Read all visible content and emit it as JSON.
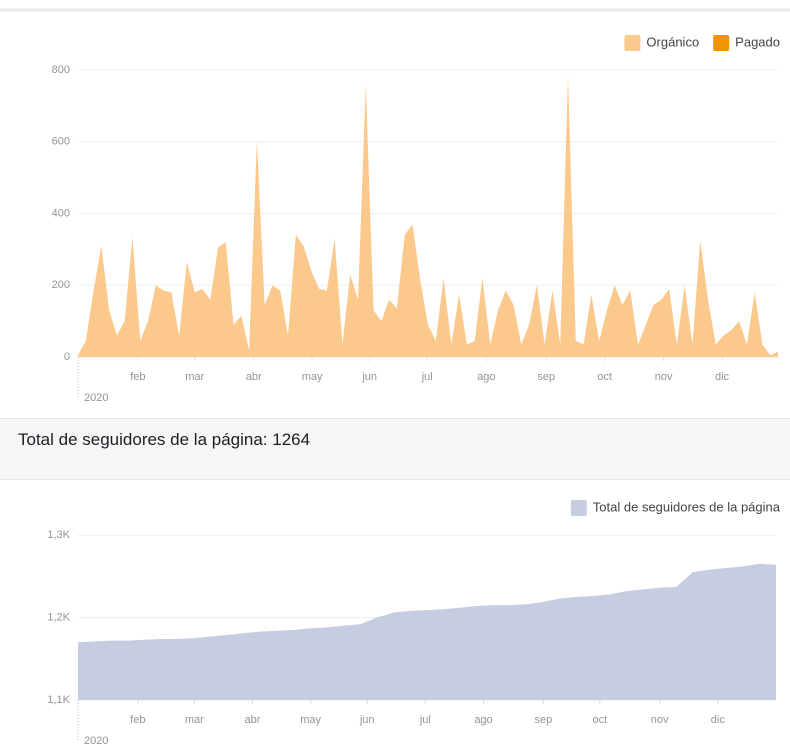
{
  "chart_data": [
    {
      "type": "area",
      "year_label": "2020",
      "series": [
        {
          "name": "Orgánico",
          "color": "#fcc98c",
          "values": [
            5,
            45,
            185,
            310,
            130,
            60,
            100,
            335,
            45,
            100,
            200,
            185,
            180,
            60,
            265,
            180,
            190,
            160,
            305,
            320,
            90,
            115,
            20,
            605,
            145,
            200,
            185,
            60,
            340,
            310,
            240,
            190,
            185,
            330,
            35,
            230,
            160,
            760,
            130,
            100,
            160,
            135,
            340,
            370,
            215,
            90,
            45,
            220,
            35,
            175,
            35,
            45,
            220,
            35,
            130,
            185,
            145,
            35,
            90,
            200,
            35,
            185,
            35,
            785,
            45,
            35,
            175,
            45,
            130,
            200,
            145,
            185,
            35,
            90,
            145,
            160,
            190,
            35,
            200,
            35,
            325,
            160,
            35,
            60,
            75,
            100,
            35,
            180,
            35,
            5,
            15
          ]
        },
        {
          "name": "Pagado",
          "color": "#f29400",
          "values": [
            0,
            0,
            0,
            0,
            0,
            0,
            0,
            0,
            0,
            0,
            0,
            0,
            0,
            0,
            0,
            0,
            0,
            0,
            0,
            0,
            0,
            0,
            0,
            0,
            0,
            0,
            0,
            0,
            0,
            0,
            0,
            0,
            0,
            0,
            0,
            0,
            0,
            0,
            0,
            0,
            0,
            0,
            0,
            0,
            0,
            0,
            0,
            0,
            0,
            0,
            0,
            0,
            0,
            0,
            0,
            0,
            0,
            0,
            0,
            0,
            0,
            0,
            0,
            0,
            0,
            0,
            0,
            0,
            0,
            0,
            0,
            0,
            0,
            0,
            0,
            0,
            0,
            0,
            0,
            0,
            0,
            0,
            0,
            0,
            0,
            0,
            0,
            0,
            0,
            0,
            0
          ]
        }
      ],
      "xlim": [
        0,
        90
      ],
      "xticks": [
        {
          "value": 7.7,
          "label": "feb"
        },
        {
          "value": 15.0,
          "label": "mar"
        },
        {
          "value": 22.6,
          "label": "abr"
        },
        {
          "value": 30.1,
          "label": "may"
        },
        {
          "value": 37.5,
          "label": "jun"
        },
        {
          "value": 44.9,
          "label": "jul"
        },
        {
          "value": 52.5,
          "label": "ago"
        },
        {
          "value": 60.2,
          "label": "sep"
        },
        {
          "value": 67.7,
          "label": "oct"
        },
        {
          "value": 75.3,
          "label": "nov"
        },
        {
          "value": 82.8,
          "label": "dic"
        }
      ],
      "ylim": [
        0,
        800
      ],
      "yticks": [
        0,
        200,
        400,
        600,
        800
      ],
      "grid": true
    },
    {
      "type": "area",
      "year_label": "2020",
      "series": [
        {
          "name": "Total de seguidores de la página",
          "color": "#c6cde0",
          "values": [
            1170,
            1171,
            1172,
            1172,
            1173,
            1174,
            1174,
            1175,
            1177,
            1179,
            1181,
            1183,
            1184,
            1185,
            1187,
            1188,
            1190,
            1192,
            1200,
            1206,
            1208,
            1209,
            1210,
            1212,
            1214,
            1215,
            1215,
            1216,
            1219,
            1223,
            1225,
            1226,
            1228,
            1232,
            1234,
            1236,
            1237,
            1255,
            1258,
            1260,
            1262,
            1265,
            1264
          ]
        }
      ],
      "xlim": [
        0,
        42
      ],
      "xticks": [
        {
          "value": 3.6,
          "label": "feb"
        },
        {
          "value": 7.0,
          "label": "mar"
        },
        {
          "value": 10.5,
          "label": "abr"
        },
        {
          "value": 14.0,
          "label": "may"
        },
        {
          "value": 17.4,
          "label": "jun"
        },
        {
          "value": 20.9,
          "label": "jul"
        },
        {
          "value": 24.4,
          "label": "ago"
        },
        {
          "value": 28.0,
          "label": "sep"
        },
        {
          "value": 31.4,
          "label": "oct"
        },
        {
          "value": 35.0,
          "label": "nov"
        },
        {
          "value": 38.5,
          "label": "dic"
        }
      ],
      "ylim": [
        1100,
        1300
      ],
      "yticks": [
        {
          "value": 1100,
          "label": "1,1K"
        },
        {
          "value": 1200,
          "label": "1,2K"
        },
        {
          "value": 1300,
          "label": "1,3K"
        }
      ],
      "grid": true
    }
  ],
  "section_title": "Total de seguidores de la página: 1264"
}
